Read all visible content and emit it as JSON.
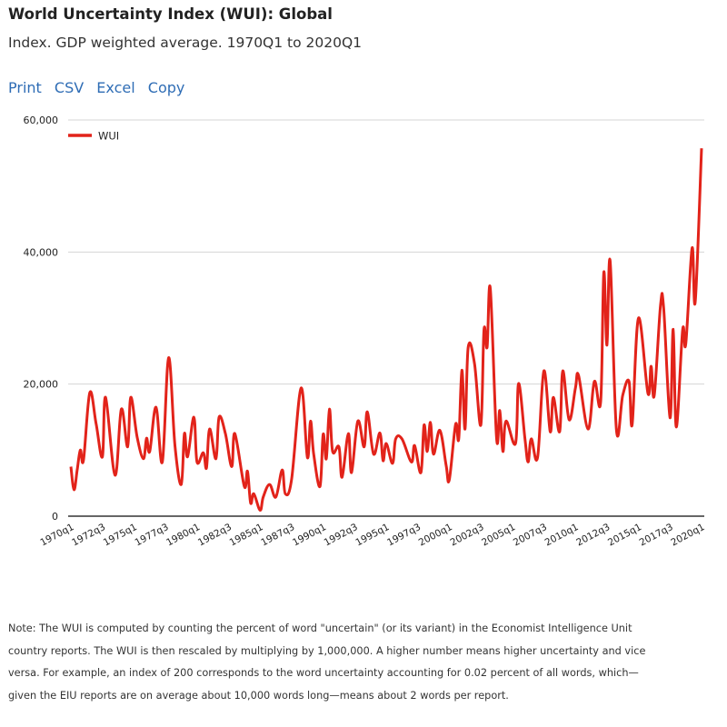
{
  "header": {
    "title": "World Uncertainty Index (WUI): Global",
    "subtitle": "Index. GDP weighted average. 1970Q1 to 2020Q1"
  },
  "links": [
    "Print",
    "CSV",
    "Excel",
    "Copy"
  ],
  "colors": {
    "series": "#e2231a",
    "link": "#2f6db5",
    "grid": "#d4d4d4"
  },
  "chart_data": {
    "type": "line",
    "title": "",
    "xlabel": "",
    "ylabel": "",
    "ylim": [
      0,
      60000
    ],
    "yticks": [
      "0",
      "20,000",
      "40,000",
      "60,000"
    ],
    "ytick_values": [
      0,
      20000,
      40000,
      60000
    ],
    "xticks": [
      "1970q1",
      "1972q3",
      "1975q1",
      "1977q3",
      "1980q1",
      "1982q3",
      "1985q1",
      "1987q3",
      "1990q1",
      "1992q3",
      "1995q1",
      "1997q3",
      "2000q1",
      "2002q3",
      "2005q1",
      "2007q3",
      "2010q1",
      "2012q3",
      "2015q1",
      "2017q3",
      "2020q1"
    ],
    "xlim": [
      "1970q1",
      "2020q1"
    ],
    "grid": "horizontal",
    "legend": "top-left",
    "series": [
      {
        "name": "WUI",
        "points": [
          [
            "1970q1",
            7500
          ],
          [
            "1970q2",
            4000
          ],
          [
            "1970q3",
            7000
          ],
          [
            "1970q4",
            10000
          ],
          [
            "1971q1",
            8500
          ],
          [
            "1971q3",
            18700
          ],
          [
            "1972q1",
            14000
          ],
          [
            "1972q3",
            9000
          ],
          [
            "1972q4",
            18000
          ],
          [
            "1973q3",
            6200
          ],
          [
            "1974q1",
            16200
          ],
          [
            "1974q3",
            10500
          ],
          [
            "1974q4",
            18000
          ],
          [
            "1975q2",
            12000
          ],
          [
            "1975q4",
            8700
          ],
          [
            "1976q1",
            11800
          ],
          [
            "1976q2",
            9800
          ],
          [
            "1976q4",
            16500
          ],
          [
            "1977q2",
            8200
          ],
          [
            "1977q4",
            24000
          ],
          [
            "1978q2",
            10700
          ],
          [
            "1978q4",
            4800
          ],
          [
            "1979q1",
            12500
          ],
          [
            "1979q2",
            9000
          ],
          [
            "1979q4",
            15000
          ],
          [
            "1980q1",
            8200
          ],
          [
            "1980q3",
            9600
          ],
          [
            "1980q4",
            7300
          ],
          [
            "1981q1",
            13200
          ],
          [
            "1981q3",
            8700
          ],
          [
            "1981q4",
            15000
          ],
          [
            "1982q2",
            12500
          ],
          [
            "1982q4",
            7500
          ],
          [
            "1983q1",
            12500
          ],
          [
            "1983q4",
            4500
          ],
          [
            "1984q1",
            6800
          ],
          [
            "1984q2",
            2000
          ],
          [
            "1984q3",
            3400
          ],
          [
            "1985q1",
            900
          ],
          [
            "1985q2",
            2900
          ],
          [
            "1985q4",
            4800
          ],
          [
            "1986q2",
            2900
          ],
          [
            "1986q4",
            7000
          ],
          [
            "1987q1",
            3400
          ],
          [
            "1987q3",
            5600
          ],
          [
            "1988q2",
            19400
          ],
          [
            "1988q4",
            8900
          ],
          [
            "1989q1",
            14400
          ],
          [
            "1989q2",
            9400
          ],
          [
            "1989q4",
            4500
          ],
          [
            "1990q1",
            12400
          ],
          [
            "1990q2",
            8700
          ],
          [
            "1990q3",
            16200
          ],
          [
            "1990q4",
            9800
          ],
          [
            "1991q2",
            10500
          ],
          [
            "1991q3",
            5900
          ],
          [
            "1992q1",
            12500
          ],
          [
            "1992q2",
            6600
          ],
          [
            "1992q4",
            14400
          ],
          [
            "1993q2",
            10500
          ],
          [
            "1993q3",
            15800
          ],
          [
            "1994q1",
            9400
          ],
          [
            "1994q3",
            12600
          ],
          [
            "1994q4",
            8400
          ],
          [
            "1995q1",
            11000
          ],
          [
            "1995q3",
            8000
          ],
          [
            "1995q4",
            11700
          ],
          [
            "1996q2",
            11700
          ],
          [
            "1997q1",
            8200
          ],
          [
            "1997q2",
            10700
          ],
          [
            "1997q4",
            6600
          ],
          [
            "1998q1",
            13800
          ],
          [
            "1998q2",
            9800
          ],
          [
            "1998q3",
            14200
          ],
          [
            "1998q4",
            9400
          ],
          [
            "1999q2",
            13000
          ],
          [
            "1999q4",
            7700
          ],
          [
            "2000q1",
            5500
          ],
          [
            "2000q3",
            13900
          ],
          [
            "2000q4",
            11700
          ],
          [
            "2001q1",
            22100
          ],
          [
            "2001q2",
            13200
          ],
          [
            "2001q3",
            25600
          ],
          [
            "2002q1",
            23100
          ],
          [
            "2002q3",
            13800
          ],
          [
            "2002q4",
            28200
          ],
          [
            "2003q1",
            25600
          ],
          [
            "2003q2",
            34500
          ],
          [
            "2003q4",
            11800
          ],
          [
            "2004q1",
            16000
          ],
          [
            "2004q2",
            9800
          ],
          [
            "2004q3",
            14400
          ],
          [
            "2005q2",
            11000
          ],
          [
            "2005q3",
            20100
          ],
          [
            "2006q1",
            11700
          ],
          [
            "2006q2",
            8200
          ],
          [
            "2006q3",
            11700
          ],
          [
            "2007q1",
            8900
          ],
          [
            "2007q3",
            22000
          ],
          [
            "2008q1",
            12800
          ],
          [
            "2008q2",
            18000
          ],
          [
            "2008q4",
            12800
          ],
          [
            "2009q1",
            22000
          ],
          [
            "2009q3",
            14600
          ],
          [
            "2010q1",
            19400
          ],
          [
            "2010q2",
            21300
          ],
          [
            "2011q1",
            13200
          ],
          [
            "2011q3",
            20400
          ],
          [
            "2012q1",
            17300
          ],
          [
            "2012q2",
            36900
          ],
          [
            "2012q3",
            25900
          ],
          [
            "2012q4",
            38700
          ],
          [
            "2013q2",
            13100
          ],
          [
            "2013q4",
            18300
          ],
          [
            "2014q2",
            20400
          ],
          [
            "2014q3",
            13900
          ],
          [
            "2015q1",
            30000
          ],
          [
            "2015q4",
            18600
          ],
          [
            "2016q1",
            22700
          ],
          [
            "2016q2",
            18300
          ],
          [
            "2016q4",
            32000
          ],
          [
            "2017q1",
            31400
          ],
          [
            "2017q3",
            14900
          ],
          [
            "2017q4",
            28300
          ],
          [
            "2018q1",
            13500
          ],
          [
            "2018q3",
            28200
          ],
          [
            "2018q4",
            26100
          ],
          [
            "2019q2",
            40600
          ],
          [
            "2019q3",
            32500
          ],
          [
            "2020q1",
            55700
          ]
        ]
      }
    ]
  },
  "note": [
    "Note: The WUI is computed by counting the percent of word \"uncertain\" (or its variant) in the Economist Intelligence Unit",
    "country reports. The WUI is then rescaled by multiplying by 1,000,000. A higher number means higher uncertainty and vice",
    "versa. For example, an index of 200 corresponds to the word uncertainty accounting for 0.02 percent of all words, which—",
    "given the EIU reports are on average about 10,000 words long—means about 2 words per report."
  ]
}
